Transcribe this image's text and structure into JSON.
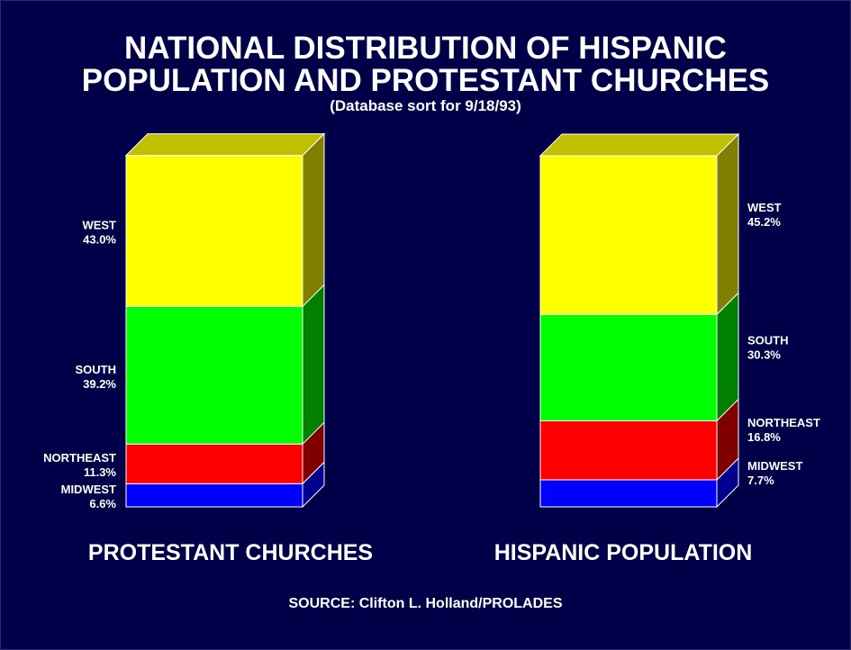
{
  "title_line1": "NATIONAL DISTRIBUTION OF HISPANIC",
  "title_line2": "POPULATION AND PROTESTANT CHURCHES",
  "subtitle": "(Database sort for 9/18/93)",
  "source": "SOURCE:  Clifton L. Holland/PROLADES",
  "chart_data": {
    "type": "bar",
    "stacked": true,
    "style": "3d-stacked-100-percent",
    "title": "NATIONAL DISTRIBUTION OF HISPANIC POPULATION AND PROTESTANT CHURCHES",
    "subtitle": "(Database sort for 9/18/93)",
    "categories": [
      "PROTESTANT CHURCHES",
      "HISPANIC POPULATION"
    ],
    "label_side": [
      "left",
      "right"
    ],
    "ylim": [
      0,
      100
    ],
    "series": [
      {
        "name": "MIDWEST",
        "values": [
          6.6,
          7.7
        ],
        "labels": [
          "6.6%",
          "7.7%"
        ],
        "color": "#0000ff",
        "side_color": "#000090"
      },
      {
        "name": "NORTHEAST",
        "values": [
          11.3,
          16.8
        ],
        "labels": [
          "11.3%",
          "16.8%"
        ],
        "color": "#ff0000",
        "side_color": "#800000"
      },
      {
        "name": "SOUTH",
        "values": [
          39.2,
          30.3
        ],
        "labels": [
          "39.2%",
          "30.3%"
        ],
        "color": "#00ff00",
        "side_color": "#008000"
      },
      {
        "name": "WEST",
        "values": [
          43.0,
          45.2
        ],
        "labels": [
          "43.0%",
          "45.2%"
        ],
        "color": "#ffff00",
        "side_color": "#808000",
        "top_color": "#c0c000"
      }
    ]
  }
}
